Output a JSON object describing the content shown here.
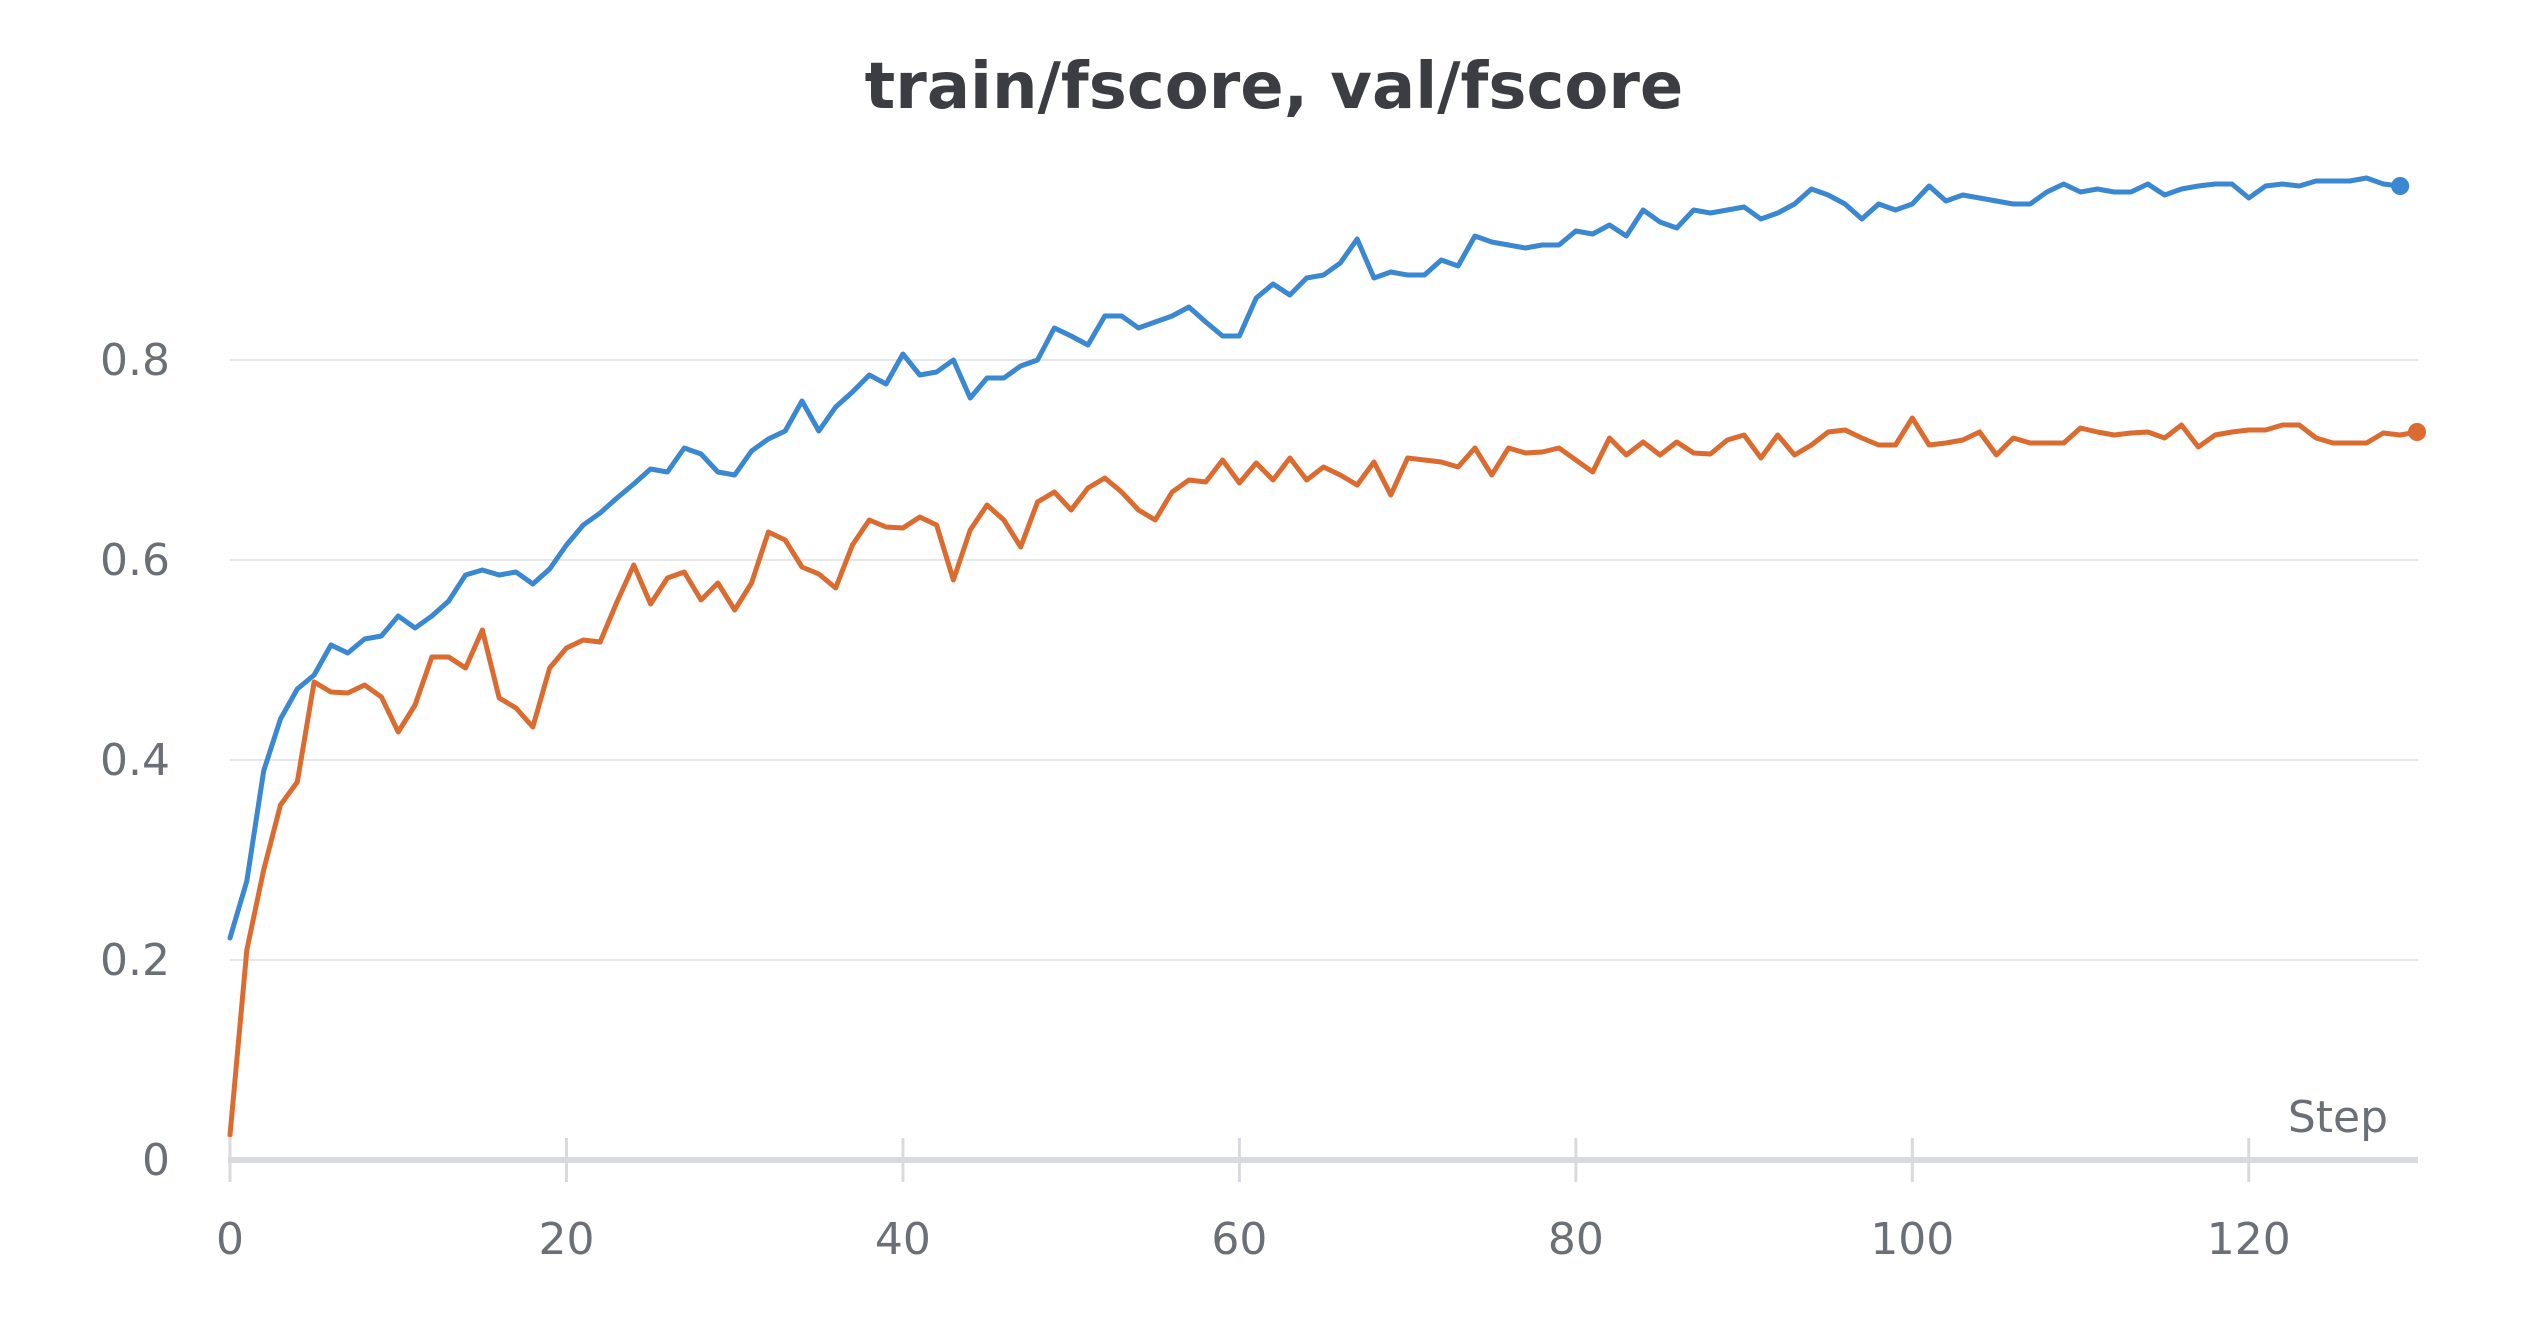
{
  "chart_data": {
    "type": "line",
    "title": "train/fscore, val/fscore",
    "xlabel": "Step",
    "ylabel": "",
    "xlim": [
      0,
      130
    ],
    "ylim": [
      0,
      1.0
    ],
    "x_ticks": [
      0,
      20,
      40,
      60,
      80,
      100,
      120
    ],
    "x_tick_labels": [
      "0",
      "20",
      "40",
      "60",
      "80",
      "100",
      "120"
    ],
    "y_ticks": [
      0,
      0.2,
      0.4,
      0.6,
      0.8
    ],
    "y_tick_labels": [
      "0",
      "0.2",
      "0.4",
      "0.6",
      "0.8"
    ],
    "grid": "horizontal",
    "legend": "none",
    "series": [
      {
        "color": "#3a87d2",
        "x_start": 0,
        "values": [
          0.222,
          0.279,
          0.389,
          0.441,
          0.471,
          0.485,
          0.515,
          0.507,
          0.521,
          0.524,
          0.544,
          0.532,
          0.544,
          0.559,
          0.585,
          0.59,
          0.585,
          0.588,
          0.576,
          0.591,
          0.615,
          0.635,
          0.647,
          0.662,
          0.676,
          0.691,
          0.688,
          0.712,
          0.706,
          0.688,
          0.685,
          0.709,
          0.721,
          0.729,
          0.759,
          0.729,
          0.753,
          0.768,
          0.785,
          0.776,
          0.806,
          0.785,
          0.788,
          0.8,
          0.762,
          0.782,
          0.782,
          0.794,
          0.8,
          0.832,
          0.824,
          0.815,
          0.844,
          0.844,
          0.832,
          0.838,
          0.844,
          0.853,
          0.838,
          0.824,
          0.824,
          0.862,
          0.876,
          0.865,
          0.882,
          0.885,
          0.897,
          0.921,
          0.882,
          0.888,
          0.885,
          0.885,
          0.9,
          0.894,
          0.924,
          0.918,
          0.915,
          0.912,
          0.915,
          0.915,
          0.929,
          0.926,
          0.935,
          0.924,
          0.95,
          0.938,
          0.932,
          0.95,
          0.947,
          0.95,
          0.953,
          0.941,
          0.947,
          0.956,
          0.971,
          0.965,
          0.956,
          0.941,
          0.956,
          0.95,
          0.956,
          0.974,
          0.959,
          0.965,
          0.962,
          0.959,
          0.956,
          0.956,
          0.968,
          0.976,
          0.968,
          0.971,
          0.968,
          0.968,
          0.976,
          0.965,
          0.971,
          0.974,
          0.976,
          0.976,
          0.962,
          0.974,
          0.976,
          0.974,
          0.979,
          0.979,
          0.979,
          0.982,
          0.976,
          0.974
        ]
      },
      {
        "color": "#db6b2f",
        "x_start": 0,
        "values": [
          0.025,
          0.21,
          0.29,
          0.355,
          0.378,
          0.478,
          0.468,
          0.467,
          0.475,
          0.463,
          0.428,
          0.455,
          0.503,
          0.503,
          0.492,
          0.53,
          0.462,
          0.452,
          0.433,
          0.492,
          0.512,
          0.52,
          0.518,
          0.558,
          0.595,
          0.556,
          0.582,
          0.588,
          0.56,
          0.577,
          0.55,
          0.577,
          0.628,
          0.62,
          0.593,
          0.586,
          0.572,
          0.615,
          0.64,
          0.633,
          0.632,
          0.643,
          0.635,
          0.58,
          0.63,
          0.655,
          0.64,
          0.613,
          0.658,
          0.668,
          0.65,
          0.672,
          0.682,
          0.668,
          0.65,
          0.64,
          0.668,
          0.68,
          0.678,
          0.7,
          0.677,
          0.697,
          0.68,
          0.702,
          0.68,
          0.693,
          0.685,
          0.675,
          0.698,
          0.665,
          0.702,
          0.7,
          0.698,
          0.693,
          0.712,
          0.685,
          0.712,
          0.707,
          0.708,
          0.712,
          0.7,
          0.688,
          0.722,
          0.705,
          0.718,
          0.705,
          0.718,
          0.707,
          0.706,
          0.72,
          0.725,
          0.702,
          0.725,
          0.705,
          0.715,
          0.728,
          0.73,
          0.722,
          0.715,
          0.715,
          0.742,
          0.715,
          0.717,
          0.72,
          0.728,
          0.705,
          0.722,
          0.717,
          0.717,
          0.717,
          0.732,
          0.728,
          0.725,
          0.727,
          0.728,
          0.722,
          0.735,
          0.713,
          0.725,
          0.728,
          0.73,
          0.73,
          0.735,
          0.735,
          0.722,
          0.717,
          0.717,
          0.717,
          0.727,
          0.725,
          0.728
        ]
      }
    ]
  }
}
